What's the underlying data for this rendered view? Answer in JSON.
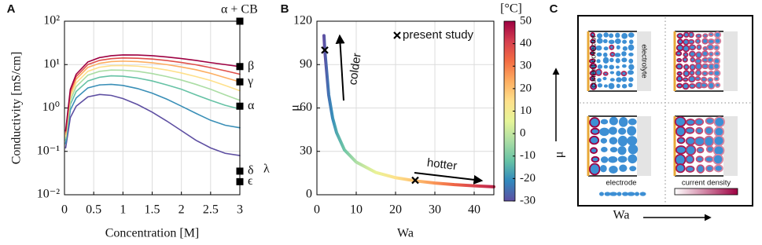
{
  "chart_data": [
    {
      "type": "line",
      "panel_label": "A",
      "x_label": "Concentration [M]",
      "y_label": "Conductivity [mS/cm]",
      "y_scale": "log",
      "grid": true,
      "xlim": [
        0,
        3
      ],
      "ylim": [
        0.01,
        100
      ],
      "xticks": [
        0,
        0.5,
        1,
        1.5,
        2,
        2.5,
        3
      ],
      "yticks": [
        {
          "value": 0.01,
          "label": "10⁻²"
        },
        {
          "value": 0.1,
          "label": "10⁻¹"
        },
        {
          "value": 1,
          "label": "10⁰"
        },
        {
          "value": 10,
          "label": "10¹"
        },
        {
          "value": 100,
          "label": "10²"
        }
      ],
      "x": [
        0.02,
        0.1,
        0.2,
        0.4,
        0.6,
        0.8,
        1,
        1.25,
        1.5,
        1.75,
        2,
        2.25,
        2.5,
        2.75,
        3
      ],
      "series": [
        {
          "color": "#5e4fa2",
          "values": [
            0.12,
            0.6,
            1.1,
            1.8,
            2.05,
            1.95,
            1.65,
            1.2,
            0.8,
            0.5,
            0.3,
            0.18,
            0.12,
            0.09,
            0.08
          ]
        },
        {
          "color": "#3a8fb7",
          "values": [
            0.15,
            0.9,
            1.7,
            2.9,
            3.4,
            3.5,
            3.3,
            2.8,
            2.2,
            1.6,
            1.1,
            0.75,
            0.52,
            0.4,
            0.35
          ]
        },
        {
          "color": "#66c2a5",
          "values": [
            0.18,
            1.2,
            2.4,
            4.2,
            5.1,
            5.5,
            5.4,
            4.9,
            4.2,
            3.4,
            2.7,
            2.0,
            1.5,
            1.15,
            0.95
          ]
        },
        {
          "color": "#abdda4",
          "values": [
            0.2,
            1.5,
            3.1,
            5.7,
            7,
            7.5,
            7.4,
            7,
            6.2,
            5.3,
            4.4,
            3.5,
            2.7,
            2.0,
            1.5
          ]
        },
        {
          "color": "#fee08b",
          "values": [
            0.22,
            1.8,
            3.8,
            7.0,
            8.7,
            9.4,
            9.5,
            9.2,
            8.5,
            7.5,
            6.4,
            5.3,
            4.3,
            3.3,
            2.5
          ]
        },
        {
          "color": "#fdae61",
          "values": [
            0.25,
            2.1,
            4.6,
            8.6,
            10.7,
            11.7,
            12,
            11.7,
            11.0,
            10.0,
            8.8,
            7.6,
            6.3,
            5.0,
            4.0
          ]
        },
        {
          "color": "#e0504a",
          "values": [
            0.28,
            2.4,
            5.3,
            10,
            12.5,
            13.7,
            14.2,
            14.0,
            13.4,
            12.4,
            11.2,
            9.9,
            8.5,
            7.2,
            6.0
          ]
        },
        {
          "color": "#9e0142",
          "values": [
            0.3,
            2.7,
            6.0,
            11.5,
            14.5,
            16,
            16.7,
            16.6,
            16.0,
            15.0,
            13.8,
            12.5,
            11.1,
            10,
            9
          ]
        }
      ],
      "markers": {
        "x": 3,
        "color": "#000000",
        "values": [
          100,
          9,
          4,
          1.1,
          0.035,
          0.02
        ],
        "labels": [
          "α + CB",
          "β",
          "γ",
          "α",
          "δ",
          "ϵ"
        ]
      },
      "annotations": [
        {
          "text": "λ"
        }
      ]
    },
    {
      "type": "line",
      "panel_label": "B",
      "x_label": "Wa",
      "y_label": "μ",
      "grid": true,
      "xlim": [
        0,
        45
      ],
      "ylim": [
        0,
        120
      ],
      "xticks": [
        0,
        10,
        20,
        30,
        40
      ],
      "yticks": [
        0,
        30,
        60,
        90,
        120
      ],
      "x": [
        1.8,
        2,
        3,
        4,
        5,
        7,
        10,
        15,
        20,
        25,
        30,
        35,
        40,
        45
      ],
      "series": [
        {
          "values": [
            110,
            100,
            69,
            53,
            43,
            31,
            22.6,
            15.4,
            11.8,
            9.6,
            8.1,
            7.0,
            6.2,
            5.5
          ],
          "color_values": [
            -30,
            -29,
            -24,
            -20,
            -16,
            -11,
            -3,
            7,
            14,
            20,
            27,
            34,
            40,
            45
          ]
        }
      ],
      "colorbar": {
        "label": "[°C]",
        "lim": [
          -30,
          50
        ],
        "ticks": [
          -30,
          -20,
          -10,
          0,
          10,
          20,
          30,
          40,
          50
        ],
        "colors": [
          "#5e4fa2",
          "#3288bd",
          "#66c2a5",
          "#abdda4",
          "#e6f598",
          "#fee08b",
          "#fdae61",
          "#f46d43",
          "#d53e4f",
          "#9e0142"
        ]
      },
      "points": {
        "name": "present study",
        "x": [
          2,
          25
        ],
        "values": [
          100,
          10
        ]
      },
      "annotations": [
        {
          "text": "colder"
        },
        {
          "text": "hotter"
        }
      ]
    }
  ],
  "diagram": {
    "panel_label": "C",
    "y_axis_label": "μ",
    "x_axis_label": "Wa",
    "labels": {
      "collector": "current collector",
      "electrolyte": "electrolyte",
      "electrode": "electrode",
      "current_density": "current density"
    }
  }
}
